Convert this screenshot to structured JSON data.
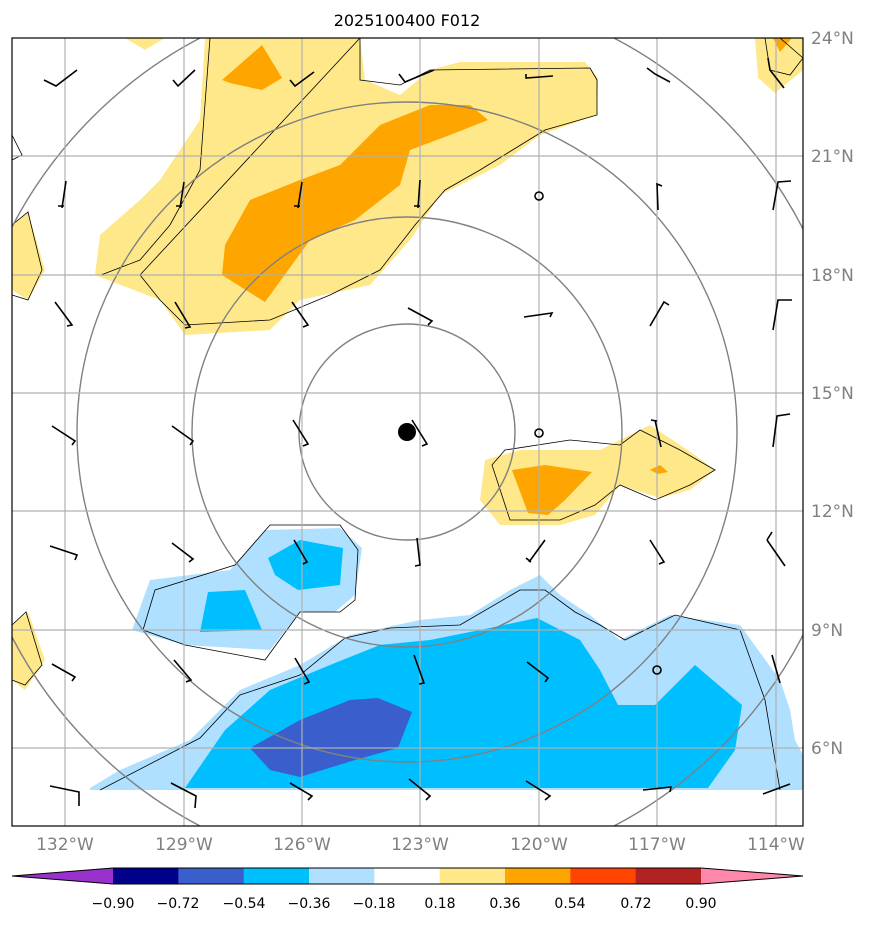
{
  "chart_data": {
    "type": "contourf-map",
    "title": "2025100400 F012",
    "lon_ticks": [
      "132°W",
      "129°W",
      "126°W",
      "123°W",
      "120°W",
      "117°W",
      "114°W"
    ],
    "lat_ticks": [
      "24°N",
      "21°N",
      "18°N",
      "15°N",
      "12°N",
      "9°N",
      "6°N"
    ],
    "colorbar": {
      "ticks": [
        "−0.90",
        "−0.72",
        "−0.54",
        "−0.36",
        "−0.18",
        "0.18",
        "0.36",
        "0.54",
        "0.72",
        "0.90"
      ],
      "colors": [
        "#9932cc",
        "#00008b",
        "#3a5fcd",
        "#00bfff",
        "#b0e0ff",
        "#ffffff",
        "#ffe88a",
        "#ffa500",
        "#ff4500",
        "#b22222",
        "#ff88aa"
      ]
    },
    "center_marker": {
      "lon": -123.3,
      "lat": 14.0
    },
    "range_rings": 4,
    "colors": {
      "grid": "#b0b0b0",
      "ring": "#808080",
      "tick_label": "#808080"
    }
  }
}
